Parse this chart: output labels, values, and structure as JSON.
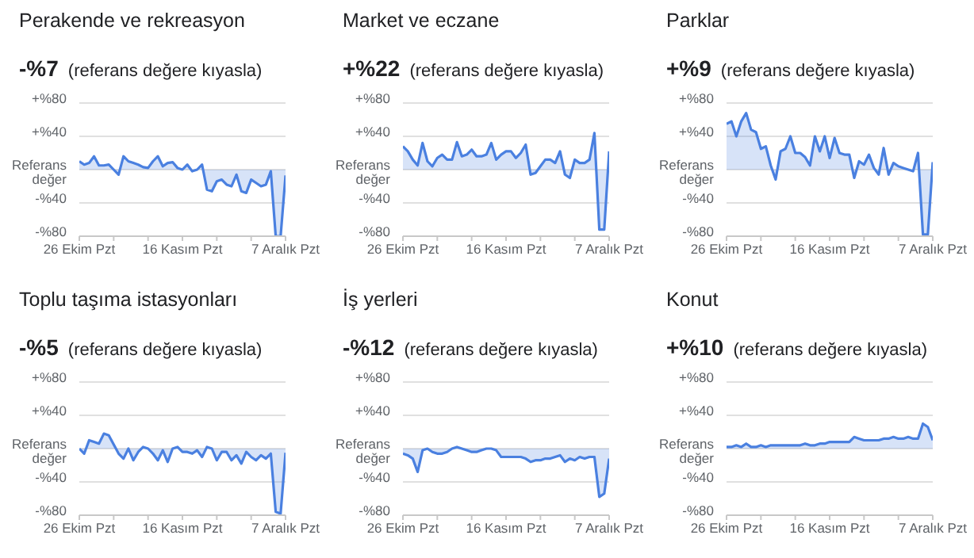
{
  "chart_data": [
    {
      "type": "area",
      "title": "Perakende ve rekreasyon",
      "subtitle": "-%7 (referans değere kıyasla)",
      "color": "#4a80e0",
      "grid": "y",
      "marker": "none",
      "x": [
        "--10-26",
        "--10-27",
        "--10-28",
        "--10-29",
        "--10-30",
        "--10-31",
        "--11-01",
        "--11-02",
        "--11-03",
        "--11-04",
        "--11-05",
        "--11-06",
        "--11-07",
        "--11-08",
        "--11-09",
        "--11-10",
        "--11-11",
        "--11-12",
        "--11-13",
        "--11-14",
        "--11-15",
        "--11-16",
        "--11-17",
        "--11-18",
        "--11-19",
        "--11-20",
        "--11-21",
        "--11-22",
        "--11-23",
        "--11-24",
        "--11-25",
        "--11-26",
        "--11-27",
        "--11-28",
        "--11-29",
        "--11-30",
        "--12-01",
        "--12-02",
        "--12-03",
        "--12-04",
        "--12-05",
        "--12-06",
        "--12-07"
      ],
      "values": [
        10,
        6,
        8,
        16,
        5,
        5,
        6,
        0,
        -6,
        16,
        10,
        8,
        6,
        3,
        2,
        10,
        16,
        4,
        8,
        9,
        2,
        0,
        6,
        -2,
        0,
        6,
        -24,
        -26,
        -14,
        -12,
        -18,
        -20,
        -6,
        -26,
        -28,
        -12,
        -16,
        -20,
        -18,
        -2,
        -80,
        -80,
        -7
      ],
      "xlim": [
        "--10-26",
        "--12-07"
      ],
      "xticks": [
        {
          "value": "--10-26",
          "label": "26 Ekim Pzt"
        },
        {
          "value": "--11-02",
          "label": null
        },
        {
          "value": "--11-09",
          "label": null
        },
        {
          "value": "--11-16",
          "label": "16 Kasım Pzt"
        },
        {
          "value": "--11-23",
          "label": null
        },
        {
          "value": "--11-30",
          "label": null
        },
        {
          "value": "--12-07",
          "label": "7 Aralık Pzt"
        }
      ],
      "ylim": [
        -80,
        80
      ],
      "yticks": [
        {
          "value": -80,
          "label": "-%80"
        },
        {
          "value": -40,
          "label": "-%40"
        },
        {
          "value": 0,
          "label": "Referans değer"
        },
        {
          "value": 40,
          "label": "+%40"
        },
        {
          "value": 80,
          "label": "+%80"
        }
      ]
    },
    {
      "type": "area",
      "title": "Market ve eczane",
      "subtitle": "+%22 (referans değere kıyasla)",
      "color": "#4a80e0",
      "grid": "y",
      "marker": "none",
      "x": [
        "--10-26",
        "--10-27",
        "--10-28",
        "--10-29",
        "--10-30",
        "--10-31",
        "--11-01",
        "--11-02",
        "--11-03",
        "--11-04",
        "--11-05",
        "--11-06",
        "--11-07",
        "--11-08",
        "--11-09",
        "--11-10",
        "--11-11",
        "--11-12",
        "--11-13",
        "--11-14",
        "--11-15",
        "--11-16",
        "--11-17",
        "--11-18",
        "--11-19",
        "--11-20",
        "--11-21",
        "--11-22",
        "--11-23",
        "--11-24",
        "--11-25",
        "--11-26",
        "--11-27",
        "--11-28",
        "--11-29",
        "--11-30",
        "--12-01",
        "--12-02",
        "--12-03",
        "--12-04",
        "--12-05",
        "--12-06",
        "--12-07"
      ],
      "values": [
        28,
        22,
        12,
        5,
        32,
        10,
        4,
        14,
        18,
        12,
        12,
        33,
        16,
        18,
        24,
        16,
        16,
        18,
        32,
        12,
        18,
        22,
        22,
        14,
        20,
        30,
        -6,
        -4,
        4,
        12,
        12,
        8,
        22,
        -6,
        -10,
        12,
        8,
        8,
        12,
        44,
        -72,
        -72,
        22
      ],
      "xlim": [
        "--10-26",
        "--12-07"
      ],
      "xticks": [
        {
          "value": "--10-26",
          "label": "26 Ekim Pzt"
        },
        {
          "value": "--11-02",
          "label": null
        },
        {
          "value": "--11-09",
          "label": null
        },
        {
          "value": "--11-16",
          "label": "16 Kasım Pzt"
        },
        {
          "value": "--11-23",
          "label": null
        },
        {
          "value": "--11-30",
          "label": null
        },
        {
          "value": "--12-07",
          "label": "7 Aralık Pzt"
        }
      ],
      "ylim": [
        -80,
        80
      ],
      "yticks": [
        {
          "value": -80,
          "label": "-%80"
        },
        {
          "value": -40,
          "label": "-%40"
        },
        {
          "value": 0,
          "label": "Referans değer"
        },
        {
          "value": 40,
          "label": "+%40"
        },
        {
          "value": 80,
          "label": "+%80"
        }
      ]
    },
    {
      "type": "area",
      "title": "Parklar",
      "subtitle": "+%9 (referans değere kıyasla)",
      "color": "#4a80e0",
      "grid": "y",
      "marker": "none",
      "x": [
        "--10-26",
        "--10-27",
        "--10-28",
        "--10-29",
        "--10-30",
        "--10-31",
        "--11-01",
        "--11-02",
        "--11-03",
        "--11-04",
        "--11-05",
        "--11-06",
        "--11-07",
        "--11-08",
        "--11-09",
        "--11-10",
        "--11-11",
        "--11-12",
        "--11-13",
        "--11-14",
        "--11-15",
        "--11-16",
        "--11-17",
        "--11-18",
        "--11-19",
        "--11-20",
        "--11-21",
        "--11-22",
        "--11-23",
        "--11-24",
        "--11-25",
        "--11-26",
        "--11-27",
        "--11-28",
        "--11-29",
        "--11-30",
        "--12-01",
        "--12-02",
        "--12-03",
        "--12-04",
        "--12-05",
        "--12-06",
        "--12-07"
      ],
      "values": [
        55,
        58,
        40,
        58,
        68,
        48,
        45,
        25,
        28,
        5,
        -12,
        22,
        25,
        40,
        20,
        20,
        15,
        5,
        40,
        22,
        40,
        14,
        38,
        20,
        18,
        18,
        -10,
        10,
        6,
        18,
        2,
        -6,
        26,
        -6,
        8,
        4,
        2,
        0,
        -2,
        20,
        -78,
        -78,
        9
      ],
      "xlim": [
        "--10-26",
        "--12-07"
      ],
      "xticks": [
        {
          "value": "--10-26",
          "label": "26 Ekim Pzt"
        },
        {
          "value": "--11-02",
          "label": null
        },
        {
          "value": "--11-09",
          "label": null
        },
        {
          "value": "--11-16",
          "label": "16 Kasım Pzt"
        },
        {
          "value": "--11-23",
          "label": null
        },
        {
          "value": "--11-30",
          "label": null
        },
        {
          "value": "--12-07",
          "label": "7 Aralık Pzt"
        }
      ],
      "ylim": [
        -80,
        80
      ],
      "yticks": [
        {
          "value": -80,
          "label": "-%80"
        },
        {
          "value": -40,
          "label": "-%40"
        },
        {
          "value": 0,
          "label": "Referans değer"
        },
        {
          "value": 40,
          "label": "+%40"
        },
        {
          "value": 80,
          "label": "+%80"
        }
      ]
    },
    {
      "type": "area",
      "title": "Toplu taşıma istasyonları",
      "subtitle": "-%5 (referans değere kıyasla)",
      "color": "#4a80e0",
      "grid": "y",
      "marker": "none",
      "x": [
        "--10-26",
        "--10-27",
        "--10-28",
        "--10-29",
        "--10-30",
        "--10-31",
        "--11-01",
        "--11-02",
        "--11-03",
        "--11-04",
        "--11-05",
        "--11-06",
        "--11-07",
        "--11-08",
        "--11-09",
        "--11-10",
        "--11-11",
        "--11-12",
        "--11-13",
        "--11-14",
        "--11-15",
        "--11-16",
        "--11-17",
        "--11-18",
        "--11-19",
        "--11-20",
        "--11-21",
        "--11-22",
        "--11-23",
        "--11-24",
        "--11-25",
        "--11-26",
        "--11-27",
        "--11-28",
        "--11-29",
        "--11-30",
        "--12-01",
        "--12-02",
        "--12-03",
        "--12-04",
        "--12-05",
        "--12-06",
        "--12-07"
      ],
      "values": [
        0,
        -6,
        10,
        8,
        6,
        18,
        16,
        5,
        -6,
        -12,
        0,
        -14,
        -4,
        2,
        0,
        -6,
        -14,
        -2,
        -16,
        0,
        2,
        -4,
        -4,
        -6,
        -2,
        -10,
        2,
        0,
        -14,
        -4,
        -4,
        -14,
        -8,
        -18,
        -4,
        -10,
        -14,
        -8,
        -12,
        -6,
        -76,
        -78,
        -5
      ],
      "xlim": [
        "--10-26",
        "--12-07"
      ],
      "xticks": [
        {
          "value": "--10-26",
          "label": "26 Ekim Pzt"
        },
        {
          "value": "--11-02",
          "label": null
        },
        {
          "value": "--11-09",
          "label": null
        },
        {
          "value": "--11-16",
          "label": "16 Kasım Pzt"
        },
        {
          "value": "--11-23",
          "label": null
        },
        {
          "value": "--11-30",
          "label": null
        },
        {
          "value": "--12-07",
          "label": "7 Aralık Pzt"
        }
      ],
      "ylim": [
        -80,
        80
      ],
      "yticks": [
        {
          "value": -80,
          "label": "-%80"
        },
        {
          "value": -40,
          "label": "-%40"
        },
        {
          "value": 0,
          "label": "Referans değer"
        },
        {
          "value": 40,
          "label": "+%40"
        },
        {
          "value": 80,
          "label": "+%80"
        }
      ]
    },
    {
      "type": "area",
      "title": "İş yerleri",
      "subtitle": "-%12 (referans değere kıyasla)",
      "color": "#4a80e0",
      "grid": "y",
      "marker": "none",
      "x": [
        "--10-26",
        "--10-27",
        "--10-28",
        "--10-29",
        "--10-30",
        "--10-31",
        "--11-01",
        "--11-02",
        "--11-03",
        "--11-04",
        "--11-05",
        "--11-06",
        "--11-07",
        "--11-08",
        "--11-09",
        "--11-10",
        "--11-11",
        "--11-12",
        "--11-13",
        "--11-14",
        "--11-15",
        "--11-16",
        "--11-17",
        "--11-18",
        "--11-19",
        "--11-20",
        "--11-21",
        "--11-22",
        "--11-23",
        "--11-24",
        "--11-25",
        "--11-26",
        "--11-27",
        "--11-28",
        "--11-29",
        "--11-30",
        "--12-01",
        "--12-02",
        "--12-03",
        "--12-04",
        "--12-05",
        "--12-06",
        "--12-07"
      ],
      "values": [
        -6,
        -8,
        -12,
        -28,
        -2,
        0,
        -4,
        -6,
        -6,
        -4,
        0,
        2,
        0,
        -2,
        -4,
        -4,
        -2,
        0,
        0,
        -2,
        -10,
        -10,
        -10,
        -10,
        -10,
        -12,
        -16,
        -14,
        -14,
        -12,
        -12,
        -10,
        -8,
        -16,
        -12,
        -14,
        -10,
        -12,
        -10,
        -10,
        -58,
        -54,
        -12
      ],
      "xlim": [
        "--10-26",
        "--12-07"
      ],
      "xticks": [
        {
          "value": "--10-26",
          "label": "26 Ekim Pzt"
        },
        {
          "value": "--11-02",
          "label": null
        },
        {
          "value": "--11-09",
          "label": null
        },
        {
          "value": "--11-16",
          "label": "16 Kasım Pzt"
        },
        {
          "value": "--11-23",
          "label": null
        },
        {
          "value": "--11-30",
          "label": null
        },
        {
          "value": "--12-07",
          "label": "7 Aralık Pzt"
        }
      ],
      "ylim": [
        -80,
        80
      ],
      "yticks": [
        {
          "value": -80,
          "label": "-%80"
        },
        {
          "value": -40,
          "label": "-%40"
        },
        {
          "value": 0,
          "label": "Referans değer"
        },
        {
          "value": 40,
          "label": "+%40"
        },
        {
          "value": 80,
          "label": "+%80"
        }
      ]
    },
    {
      "type": "area",
      "title": "Konut",
      "subtitle": "+%10 (referans değere kıyasla)",
      "color": "#4a80e0",
      "grid": "y",
      "marker": "none",
      "x": [
        "--10-26",
        "--10-27",
        "--10-28",
        "--10-29",
        "--10-30",
        "--10-31",
        "--11-01",
        "--11-02",
        "--11-03",
        "--11-04",
        "--11-05",
        "--11-06",
        "--11-07",
        "--11-08",
        "--11-09",
        "--11-10",
        "--11-11",
        "--11-12",
        "--11-13",
        "--11-14",
        "--11-15",
        "--11-16",
        "--11-17",
        "--11-18",
        "--11-19",
        "--11-20",
        "--11-21",
        "--11-22",
        "--11-23",
        "--11-24",
        "--11-25",
        "--11-26",
        "--11-27",
        "--11-28",
        "--11-29",
        "--11-30",
        "--12-01",
        "--12-02",
        "--12-03",
        "--12-04",
        "--12-05",
        "--12-06",
        "--12-07"
      ],
      "values": [
        2,
        2,
        4,
        2,
        6,
        2,
        2,
        4,
        2,
        4,
        4,
        4,
        4,
        4,
        4,
        4,
        6,
        4,
        4,
        6,
        6,
        8,
        8,
        8,
        8,
        8,
        14,
        12,
        10,
        10,
        10,
        10,
        12,
        12,
        14,
        12,
        12,
        14,
        12,
        12,
        30,
        26,
        10
      ],
      "xlim": [
        "--10-26",
        "--12-07"
      ],
      "xticks": [
        {
          "value": "--10-26",
          "label": "26 Ekim Pzt"
        },
        {
          "value": "--11-02",
          "label": null
        },
        {
          "value": "--11-09",
          "label": null
        },
        {
          "value": "--11-16",
          "label": "16 Kasım Pzt"
        },
        {
          "value": "--11-23",
          "label": null
        },
        {
          "value": "--11-30",
          "label": null
        },
        {
          "value": "--12-07",
          "label": "7 Aralık Pzt"
        }
      ],
      "ylim": [
        -80,
        80
      ],
      "yticks": [
        {
          "value": -80,
          "label": "-%80"
        },
        {
          "value": -40,
          "label": "-%40"
        },
        {
          "value": 0,
          "label": "Referans değer"
        },
        {
          "value": 40,
          "label": "+%40"
        },
        {
          "value": 80,
          "label": "+%80"
        }
      ]
    }
  ]
}
